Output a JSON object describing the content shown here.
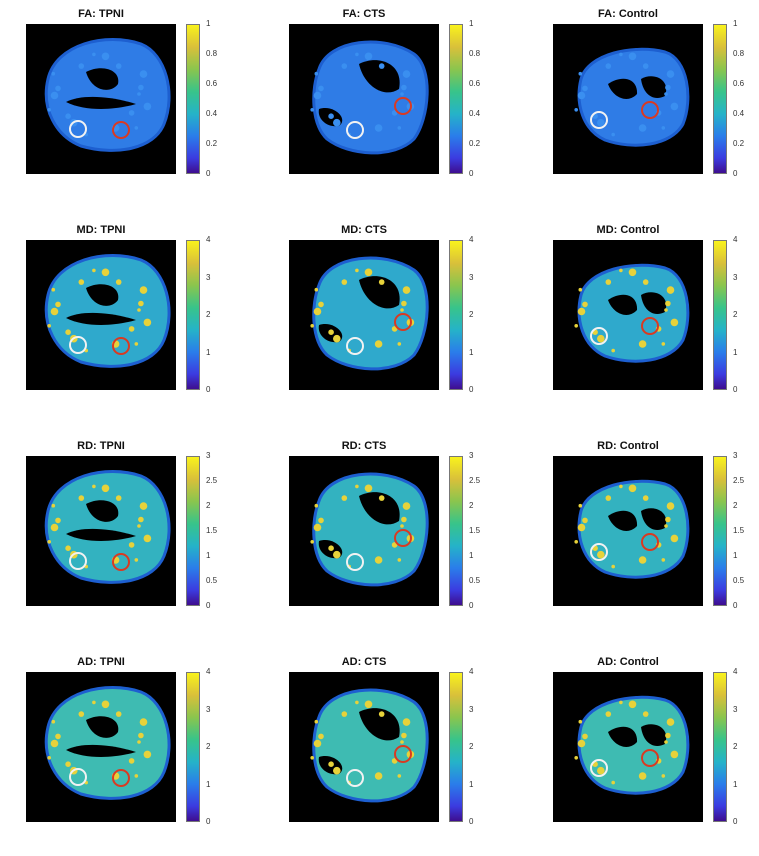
{
  "colormap": {
    "low": "#3e0d8f",
    "mid": "#25b3c8",
    "high": "#f9f21c"
  },
  "circle_colors": {
    "white": "#f2f2f2",
    "red": "#d93a22"
  },
  "rows": [
    {
      "metric": "FA",
      "ticks": [
        "1",
        "0.8",
        "0.6",
        "0.4",
        "0.2",
        "0"
      ],
      "tissue": "#2f7ce6",
      "panels": [
        {
          "title": "FA: TPNI"
        },
        {
          "title": "FA: CTS"
        },
        {
          "title": "FA: Control"
        }
      ]
    },
    {
      "metric": "MD",
      "ticks": [
        "4",
        "3",
        "2",
        "1",
        "0"
      ],
      "tissue": "#2fa9cc",
      "panels": [
        {
          "title": "MD: TPNI"
        },
        {
          "title": "MD: CTS"
        },
        {
          "title": "MD: Control"
        }
      ]
    },
    {
      "metric": "RD",
      "ticks": [
        "3",
        "2.5",
        "2",
        "1.5",
        "1",
        "0.5",
        "0"
      ],
      "tissue": "#33b2c0",
      "panels": [
        {
          "title": "RD: TPNI"
        },
        {
          "title": "RD: CTS"
        },
        {
          "title": "RD: Control"
        }
      ]
    },
    {
      "metric": "AD",
      "ticks": [
        "4",
        "3",
        "2",
        "1",
        "0"
      ],
      "tissue": "#3ebbb2",
      "panels": [
        {
          "title": "AD: TPNI"
        },
        {
          "title": "AD: CTS"
        },
        {
          "title": "AD: Control"
        }
      ]
    }
  ]
}
